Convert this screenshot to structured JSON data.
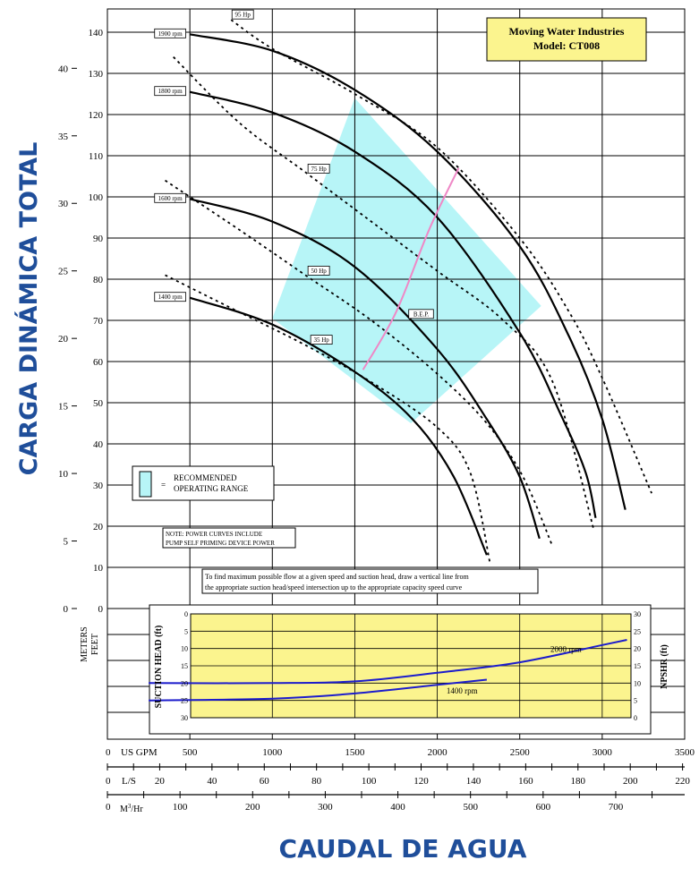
{
  "chart_data": {
    "type": "line",
    "title_box": [
      "Moving Water Industries",
      "Model: CT008"
    ],
    "ylabel": "CARGA DINÁMICA TOTAL",
    "xlabel": "CAUDAL DE AGUA",
    "y_feet": {
      "ticks": [
        10,
        20,
        30,
        40,
        50,
        60,
        70,
        80,
        90,
        100,
        110,
        120,
        130,
        140
      ],
      "range": [
        0,
        145
      ]
    },
    "y_meters": {
      "ticks": [
        0,
        5,
        10,
        15,
        20,
        25,
        30,
        35,
        40
      ],
      "range": [
        0,
        44.2
      ]
    },
    "unit_labels": {
      "meters": "METERS",
      "feet": "FEET"
    },
    "x_gpm": {
      "label": "US GPM",
      "zero": "0",
      "ticks": [
        500,
        1000,
        1500,
        2000,
        2500,
        3000,
        3500
      ],
      "range": [
        0,
        3500
      ]
    },
    "x_ls": {
      "label": "L/S",
      "zero": "0",
      "ticks": [
        20,
        40,
        60,
        80,
        100,
        120,
        140,
        160,
        180,
        200,
        220
      ]
    },
    "x_m3hr": {
      "label_main": "M",
      "label_sup": "3",
      "label_tail": "/Hr",
      "zero": "0",
      "ticks": [
        100,
        200,
        300,
        400,
        500,
        600,
        700
      ]
    },
    "speed_curves": [
      {
        "name": "1900 rpm",
        "points": [
          [
            500,
            139.5
          ],
          [
            1000,
            135.5
          ],
          [
            1500,
            126
          ],
          [
            2000,
            111
          ],
          [
            2500,
            88
          ],
          [
            2800,
            66
          ],
          [
            3000,
            46
          ],
          [
            3140,
            24
          ]
        ]
      },
      {
        "name": "1800 rpm",
        "points": [
          [
            500,
            125.5
          ],
          [
            1000,
            120.5
          ],
          [
            1500,
            111
          ],
          [
            2000,
            95
          ],
          [
            2500,
            67
          ],
          [
            2750,
            47
          ],
          [
            2900,
            33
          ],
          [
            2960,
            22
          ]
        ]
      },
      {
        "name": "1600 rpm",
        "points": [
          [
            500,
            99.5
          ],
          [
            1000,
            94
          ],
          [
            1500,
            83
          ],
          [
            2000,
            63
          ],
          [
            2300,
            46
          ],
          [
            2500,
            32
          ],
          [
            2620,
            17
          ]
        ]
      },
      {
        "name": "1400 rpm",
        "points": [
          [
            500,
            75.5
          ],
          [
            1000,
            69
          ],
          [
            1500,
            57.5
          ],
          [
            1850,
            46
          ],
          [
            2100,
            32
          ],
          [
            2300,
            13
          ]
        ]
      }
    ],
    "power_curves": [
      {
        "name": "95 Hp",
        "points": [
          [
            750,
            143
          ],
          [
            1000,
            136
          ],
          [
            1500,
            125
          ],
          [
            2000,
            112
          ],
          [
            2500,
            90
          ],
          [
            2800,
            72
          ],
          [
            3000,
            56
          ],
          [
            3300,
            28
          ]
        ]
      },
      {
        "name": "75 Hp",
        "points": [
          [
            400,
            134
          ],
          [
            800,
            118
          ],
          [
            1200,
            106
          ],
          [
            1600,
            94
          ],
          [
            2000,
            82
          ],
          [
            2400,
            70
          ],
          [
            2700,
            55
          ],
          [
            2950,
            19
          ]
        ]
      },
      {
        "name": "50 Hp",
        "points": [
          [
            350,
            104
          ],
          [
            800,
            92
          ],
          [
            1200,
            81
          ],
          [
            1600,
            70
          ],
          [
            2000,
            57
          ],
          [
            2300,
            45
          ],
          [
            2520,
            32
          ],
          [
            2700,
            15
          ]
        ]
      },
      {
        "name": "35 Hp",
        "points": [
          [
            350,
            81
          ],
          [
            800,
            72
          ],
          [
            1200,
            64
          ],
          [
            1600,
            55
          ],
          [
            2000,
            44
          ],
          [
            2200,
            33
          ],
          [
            2320,
            11
          ]
        ]
      }
    ],
    "bep": {
      "name": "B.E.P.",
      "points": [
        [
          1550,
          58
        ],
        [
          1750,
          72
        ],
        [
          1950,
          92
        ],
        [
          2130,
          107
        ]
      ]
    },
    "recommended_range": [
      [
        1000,
        70.5
      ],
      [
        1500,
        124
      ],
      [
        2630,
        73.5
      ],
      [
        1840,
        45
      ]
    ],
    "legend": {
      "line1": "RECOMMENDED",
      "line2": "OPERATING RANGE",
      "eq": "="
    },
    "note": [
      "NOTE:  POWER CURVES INCLUDE",
      "PUMP SELF PRIMING DEVICE POWER"
    ],
    "instruction": [
      "To find maximum possible flow at a given speed and suction head, draw a vertical line from",
      "the appropriate suction head/speed intersection up to the appropriate capacity speed curve"
    ],
    "inset": {
      "left_label": "SUCTION HEAD (ft)",
      "right_label": "NPSHR (ft)",
      "left_ticks": [
        0,
        5,
        10,
        15,
        20,
        25,
        30
      ],
      "right_ticks": [
        0,
        5,
        10,
        15,
        20,
        25,
        30
      ],
      "series": [
        {
          "name": "2000 rpm",
          "points": [
            [
              250,
              20
            ],
            [
              1000,
              20
            ],
            [
              1500,
              19.5
            ],
            [
              2000,
              17
            ],
            [
              2500,
              14
            ],
            [
              3000,
              9
            ],
            [
              3150,
              7.5
            ]
          ]
        },
        {
          "name": "1400 rpm",
          "points": [
            [
              250,
              25
            ],
            [
              1000,
              24.5
            ],
            [
              1500,
              23
            ],
            [
              2000,
              20.5
            ],
            [
              2300,
              19
            ]
          ]
        }
      ]
    }
  }
}
